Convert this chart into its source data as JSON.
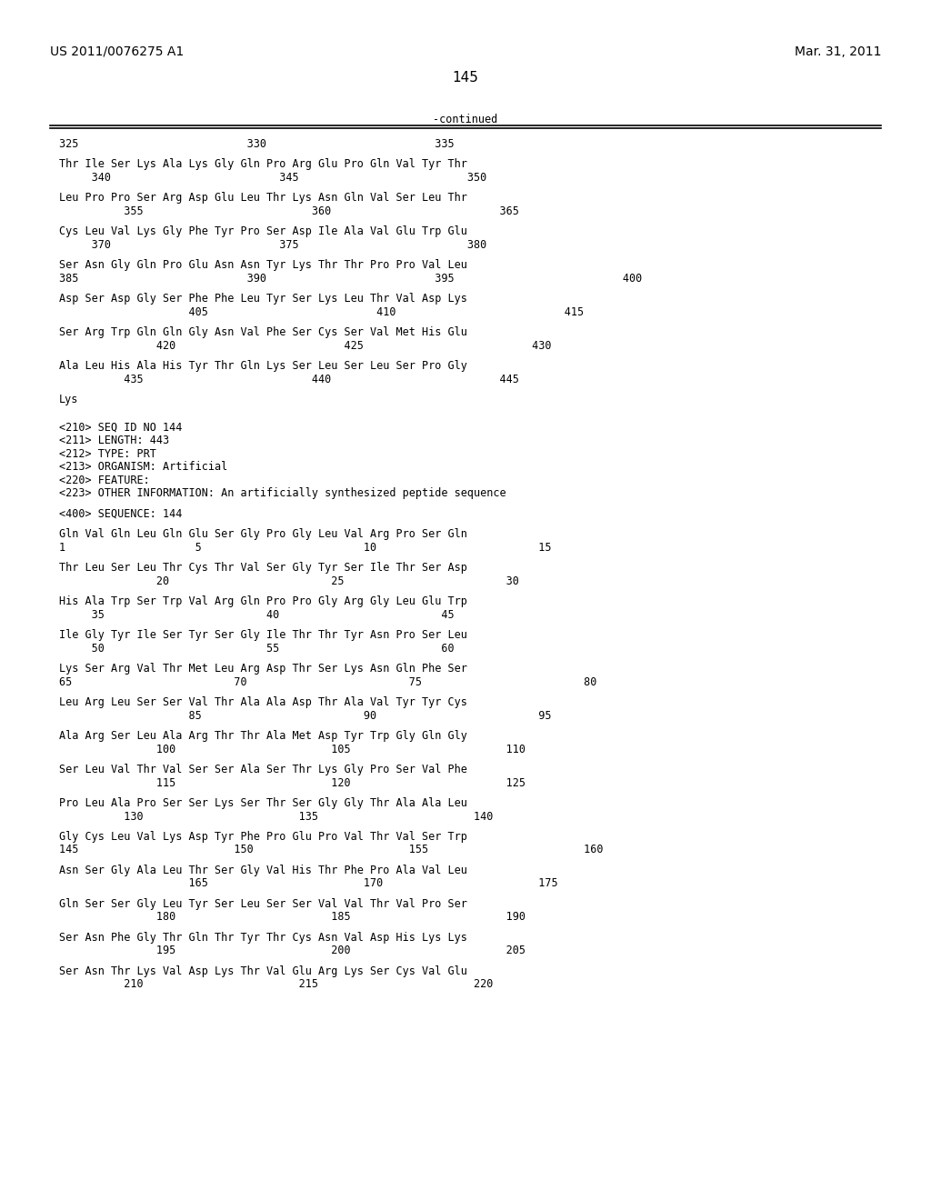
{
  "header_left": "US 2011/0076275 A1",
  "header_right": "Mar. 31, 2011",
  "page_number": "145",
  "continued_label": "-continued",
  "background_color": "#ffffff",
  "text_color": "#000000",
  "font_size": 8.5,
  "mono_font": "DejaVu Sans Mono",
  "content_lines": [
    {
      "text": "325                          330                          335",
      "indent": 1,
      "style": "numbers"
    },
    {
      "text": "",
      "indent": 0
    },
    {
      "text": "Thr Ile Ser Lys Ala Lys Gly Gln Pro Arg Glu Pro Gln Val Tyr Thr",
      "indent": 0,
      "style": "seq"
    },
    {
      "text": "     340                          345                          350",
      "indent": 0,
      "style": "numbers"
    },
    {
      "text": "",
      "indent": 0
    },
    {
      "text": "Leu Pro Pro Ser Arg Asp Glu Leu Thr Lys Asn Gln Val Ser Leu Thr",
      "indent": 0,
      "style": "seq"
    },
    {
      "text": "          355                          360                          365",
      "indent": 0,
      "style": "numbers"
    },
    {
      "text": "",
      "indent": 0
    },
    {
      "text": "Cys Leu Val Lys Gly Phe Tyr Pro Ser Asp Ile Ala Val Glu Trp Glu",
      "indent": 0,
      "style": "seq"
    },
    {
      "text": "     370                          375                          380",
      "indent": 0,
      "style": "numbers"
    },
    {
      "text": "",
      "indent": 0
    },
    {
      "text": "Ser Asn Gly Gln Pro Glu Asn Asn Tyr Lys Thr Thr Pro Pro Val Leu",
      "indent": 0,
      "style": "seq"
    },
    {
      "text": "385                          390                          395                          400",
      "indent": 0,
      "style": "numbers"
    },
    {
      "text": "",
      "indent": 0
    },
    {
      "text": "Asp Ser Asp Gly Ser Phe Phe Leu Tyr Ser Lys Leu Thr Val Asp Lys",
      "indent": 0,
      "style": "seq"
    },
    {
      "text": "                    405                          410                          415",
      "indent": 0,
      "style": "numbers"
    },
    {
      "text": "",
      "indent": 0
    },
    {
      "text": "Ser Arg Trp Gln Gln Gly Asn Val Phe Ser Cys Ser Val Met His Glu",
      "indent": 0,
      "style": "seq"
    },
    {
      "text": "               420                          425                          430",
      "indent": 0,
      "style": "numbers"
    },
    {
      "text": "",
      "indent": 0
    },
    {
      "text": "Ala Leu His Ala His Tyr Thr Gln Lys Ser Leu Ser Leu Ser Pro Gly",
      "indent": 0,
      "style": "seq"
    },
    {
      "text": "          435                          440                          445",
      "indent": 0,
      "style": "numbers"
    },
    {
      "text": "",
      "indent": 0
    },
    {
      "text": "Lys",
      "indent": 0,
      "style": "seq"
    },
    {
      "text": "",
      "indent": 0
    },
    {
      "text": "",
      "indent": 0
    },
    {
      "text": "<210> SEQ ID NO 144",
      "indent": 0,
      "style": "meta"
    },
    {
      "text": "<211> LENGTH: 443",
      "indent": 0,
      "style": "meta"
    },
    {
      "text": "<212> TYPE: PRT",
      "indent": 0,
      "style": "meta"
    },
    {
      "text": "<213> ORGANISM: Artificial",
      "indent": 0,
      "style": "meta"
    },
    {
      "text": "<220> FEATURE:",
      "indent": 0,
      "style": "meta"
    },
    {
      "text": "<223> OTHER INFORMATION: An artificially synthesized peptide sequence",
      "indent": 0,
      "style": "meta"
    },
    {
      "text": "",
      "indent": 0
    },
    {
      "text": "<400> SEQUENCE: 144",
      "indent": 0,
      "style": "meta"
    },
    {
      "text": "",
      "indent": 0
    },
    {
      "text": "Gln Val Gln Leu Gln Glu Ser Gly Pro Gly Leu Val Arg Pro Ser Gln",
      "indent": 0,
      "style": "seq"
    },
    {
      "text": "1                    5                         10                         15",
      "indent": 0,
      "style": "numbers"
    },
    {
      "text": "",
      "indent": 0
    },
    {
      "text": "Thr Leu Ser Leu Thr Cys Thr Val Ser Gly Tyr Ser Ile Thr Ser Asp",
      "indent": 0,
      "style": "seq"
    },
    {
      "text": "               20                         25                         30",
      "indent": 0,
      "style": "numbers"
    },
    {
      "text": "",
      "indent": 0
    },
    {
      "text": "His Ala Trp Ser Trp Val Arg Gln Pro Pro Gly Arg Gly Leu Glu Trp",
      "indent": 0,
      "style": "seq"
    },
    {
      "text": "     35                         40                         45",
      "indent": 0,
      "style": "numbers"
    },
    {
      "text": "",
      "indent": 0
    },
    {
      "text": "Ile Gly Tyr Ile Ser Tyr Ser Gly Ile Thr Thr Tyr Asn Pro Ser Leu",
      "indent": 0,
      "style": "seq"
    },
    {
      "text": "     50                         55                         60",
      "indent": 0,
      "style": "numbers"
    },
    {
      "text": "",
      "indent": 0
    },
    {
      "text": "Lys Ser Arg Val Thr Met Leu Arg Asp Thr Ser Lys Asn Gln Phe Ser",
      "indent": 0,
      "style": "seq"
    },
    {
      "text": "65                         70                         75                         80",
      "indent": 0,
      "style": "numbers"
    },
    {
      "text": "",
      "indent": 0
    },
    {
      "text": "Leu Arg Leu Ser Ser Val Thr Ala Ala Asp Thr Ala Val Tyr Tyr Cys",
      "indent": 0,
      "style": "seq"
    },
    {
      "text": "                    85                         90                         95",
      "indent": 0,
      "style": "numbers"
    },
    {
      "text": "",
      "indent": 0
    },
    {
      "text": "Ala Arg Ser Leu Ala Arg Thr Thr Ala Met Asp Tyr Trp Gly Gln Gly",
      "indent": 0,
      "style": "seq"
    },
    {
      "text": "               100                        105                        110",
      "indent": 0,
      "style": "numbers"
    },
    {
      "text": "",
      "indent": 0
    },
    {
      "text": "Ser Leu Val Thr Val Ser Ser Ala Ser Thr Lys Gly Pro Ser Val Phe",
      "indent": 0,
      "style": "seq"
    },
    {
      "text": "               115                        120                        125",
      "indent": 0,
      "style": "numbers"
    },
    {
      "text": "",
      "indent": 0
    },
    {
      "text": "Pro Leu Ala Pro Ser Ser Lys Ser Thr Ser Gly Gly Thr Ala Ala Leu",
      "indent": 0,
      "style": "seq"
    },
    {
      "text": "          130                        135                        140",
      "indent": 0,
      "style": "numbers"
    },
    {
      "text": "",
      "indent": 0
    },
    {
      "text": "Gly Cys Leu Val Lys Asp Tyr Phe Pro Glu Pro Val Thr Val Ser Trp",
      "indent": 0,
      "style": "seq"
    },
    {
      "text": "145                        150                        155                        160",
      "indent": 0,
      "style": "numbers"
    },
    {
      "text": "",
      "indent": 0
    },
    {
      "text": "Asn Ser Gly Ala Leu Thr Ser Gly Val His Thr Phe Pro Ala Val Leu",
      "indent": 0,
      "style": "seq"
    },
    {
      "text": "                    165                        170                        175",
      "indent": 0,
      "style": "numbers"
    },
    {
      "text": "",
      "indent": 0
    },
    {
      "text": "Gln Ser Ser Gly Leu Tyr Ser Leu Ser Ser Val Val Thr Val Pro Ser",
      "indent": 0,
      "style": "seq"
    },
    {
      "text": "               180                        185                        190",
      "indent": 0,
      "style": "numbers"
    },
    {
      "text": "",
      "indent": 0
    },
    {
      "text": "Ser Asn Phe Gly Thr Gln Thr Tyr Thr Cys Asn Val Asp His Lys Lys",
      "indent": 0,
      "style": "seq"
    },
    {
      "text": "               195                        200                        205",
      "indent": 0,
      "style": "numbers"
    },
    {
      "text": "",
      "indent": 0
    },
    {
      "text": "Ser Asn Thr Lys Val Asp Lys Thr Val Glu Arg Lys Ser Cys Val Glu",
      "indent": 0,
      "style": "seq"
    },
    {
      "text": "          210                        215                        220",
      "indent": 0,
      "style": "numbers"
    }
  ]
}
